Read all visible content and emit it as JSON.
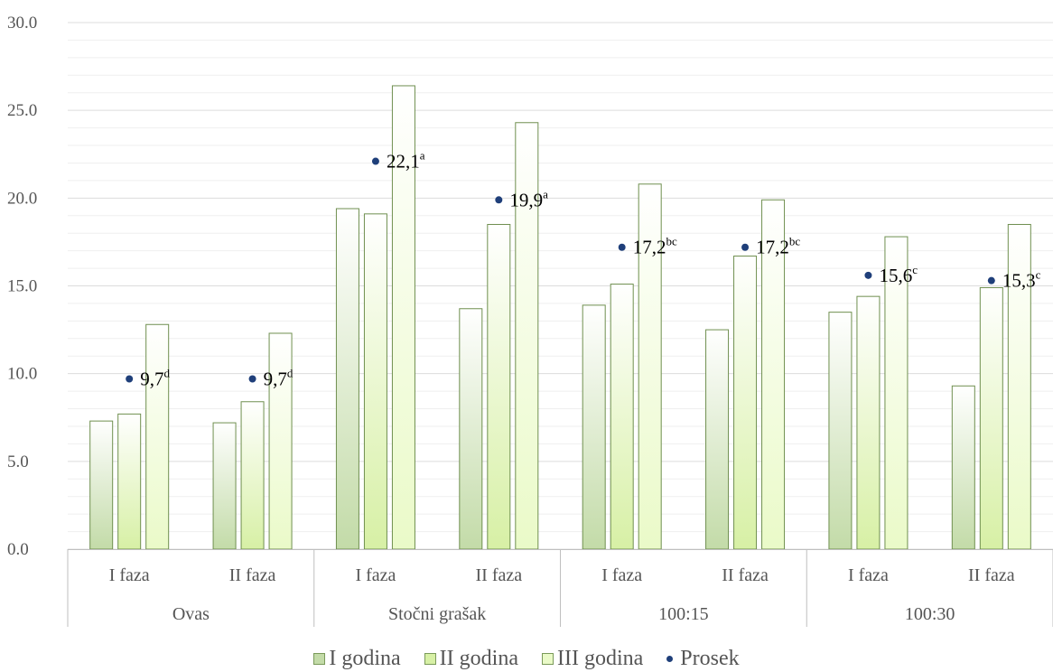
{
  "chart_data": {
    "type": "bar",
    "y_ticks": [
      "0.0",
      "5.0",
      "10.0",
      "15.0",
      "20.0",
      "25.0",
      "30.0"
    ],
    "ylim": [
      0,
      30
    ],
    "grid": true,
    "groups": [
      "Ovas",
      "Stočni grašak",
      "100:15",
      "100:30"
    ],
    "categories": [
      {
        "label": "I faza",
        "group": "Ovas"
      },
      {
        "label": "II faza",
        "group": "Ovas"
      },
      {
        "label": "I faza",
        "group": "Stočni grašak"
      },
      {
        "label": "II faza",
        "group": "Stočni grašak"
      },
      {
        "label": "I faza",
        "group": "100:15"
      },
      {
        "label": "II faza",
        "group": "100:15"
      },
      {
        "label": "I faza",
        "group": "100:30"
      },
      {
        "label": "II faza",
        "group": "100:30"
      }
    ],
    "series": [
      {
        "name": "I godina",
        "values": [
          7.3,
          7.2,
          19.4,
          13.7,
          13.9,
          12.5,
          13.5,
          9.3
        ],
        "color": "#c3dba8"
      },
      {
        "name": "II godina",
        "values": [
          7.7,
          8.4,
          19.1,
          18.5,
          15.1,
          16.7,
          14.4,
          14.9
        ],
        "color": "#d7f0a5"
      },
      {
        "name": "III godina",
        "values": [
          12.8,
          12.3,
          26.4,
          24.3,
          20.8,
          19.9,
          17.8,
          18.5
        ],
        "color": "#eafac8"
      }
    ],
    "prosek": {
      "name": "Prosek",
      "values": [
        9.7,
        9.7,
        22.1,
        19.9,
        17.2,
        17.2,
        15.6,
        15.3
      ],
      "labels": [
        "9,7",
        "9,7",
        "22,1",
        "19,9",
        "17,2",
        "17,2",
        "15,6",
        "15,3"
      ],
      "letters": [
        "d",
        "d",
        "a",
        "a",
        "bc",
        "bc",
        "c",
        "c"
      ],
      "color": "#1f3f7a"
    },
    "legend_position": "bottom"
  }
}
